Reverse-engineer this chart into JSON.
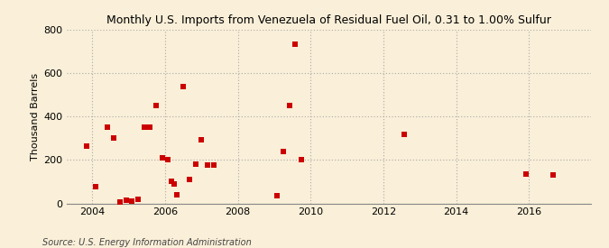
{
  "title": "Monthly U.S. Imports from Venezuela of Residual Fuel Oil, 0.31 to 1.00% Sulfur",
  "ylabel": "Thousand Barrels",
  "source": "Source: U.S. Energy Information Administration",
  "background_color": "#faefd8",
  "marker_color": "#cc0000",
  "xlim": [
    2003.3,
    2017.7
  ],
  "ylim": [
    0,
    800
  ],
  "yticks": [
    0,
    200,
    400,
    600,
    800
  ],
  "xticks": [
    2004,
    2006,
    2008,
    2010,
    2012,
    2014,
    2016
  ],
  "points": [
    [
      2003.83,
      262
    ],
    [
      2004.08,
      75
    ],
    [
      2004.42,
      350
    ],
    [
      2004.58,
      300
    ],
    [
      2004.75,
      5
    ],
    [
      2004.92,
      15
    ],
    [
      2005.08,
      10
    ],
    [
      2005.25,
      20
    ],
    [
      2005.42,
      350
    ],
    [
      2005.58,
      350
    ],
    [
      2005.75,
      450
    ],
    [
      2005.92,
      210
    ],
    [
      2006.08,
      200
    ],
    [
      2006.17,
      100
    ],
    [
      2006.25,
      90
    ],
    [
      2006.33,
      40
    ],
    [
      2006.5,
      540
    ],
    [
      2006.67,
      110
    ],
    [
      2006.83,
      180
    ],
    [
      2007.0,
      295
    ],
    [
      2007.17,
      175
    ],
    [
      2007.33,
      175
    ],
    [
      2009.08,
      35
    ],
    [
      2009.25,
      240
    ],
    [
      2009.42,
      450
    ],
    [
      2009.58,
      735
    ],
    [
      2009.75,
      200
    ],
    [
      2012.58,
      320
    ],
    [
      2015.92,
      135
    ],
    [
      2016.67,
      130
    ]
  ]
}
